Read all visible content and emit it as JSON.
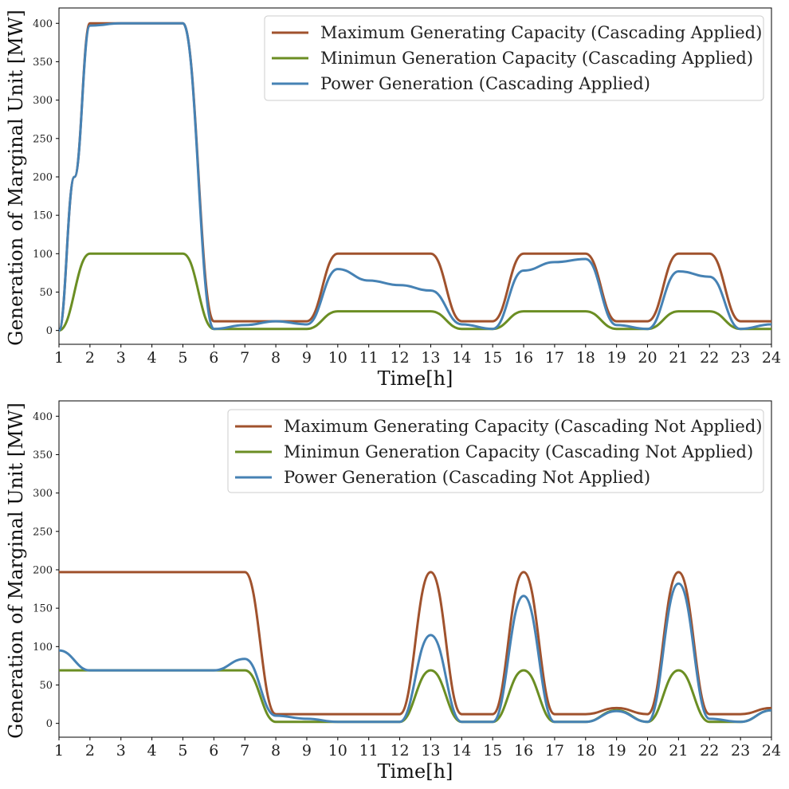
{
  "colors": {
    "max": "#a0522d",
    "min": "#6b8e23",
    "gen": "#4682b4"
  },
  "chart_data": [
    {
      "type": "line",
      "xlabel": "Time[h]",
      "ylabel": "Generation of Marginal Unit [MW]",
      "xlim": [
        1,
        24
      ],
      "ylim": [
        -18,
        420
      ],
      "xticks": [
        1,
        2,
        3,
        4,
        5,
        6,
        7,
        8,
        9,
        10,
        11,
        12,
        13,
        14,
        15,
        16,
        17,
        18,
        19,
        20,
        21,
        22,
        23,
        24
      ],
      "yticks": [
        0,
        50,
        100,
        150,
        200,
        250,
        300,
        350,
        400
      ],
      "legend_position": "top-right",
      "series": [
        {
          "name": "Maximum Generating Capacity (Cascading Applied)",
          "color_key": "max",
          "x": [
            1,
            1.5,
            2,
            5,
            6,
            9,
            10,
            13,
            14,
            15,
            16,
            18,
            19,
            20,
            21,
            22,
            23,
            24
          ],
          "values": [
            0,
            200,
            400,
            400,
            12,
            12,
            100,
            100,
            12,
            12,
            100,
            100,
            12,
            12,
            100,
            100,
            12,
            12
          ]
        },
        {
          "name": "Minimun Generation Capacity (Cascading Applied)",
          "color_key": "min",
          "x": [
            1,
            2,
            5,
            6,
            9,
            10,
            13,
            14,
            15,
            16,
            18,
            19,
            20,
            21,
            22,
            23,
            24
          ],
          "values": [
            0,
            100,
            100,
            2,
            2,
            25,
            25,
            2,
            2,
            25,
            25,
            2,
            2,
            25,
            25,
            2,
            2
          ]
        },
        {
          "name": "Power Generation (Cascading Applied)",
          "color_key": "gen",
          "x": [
            1,
            1.5,
            2,
            3,
            5,
            6,
            7,
            8,
            9,
            10,
            11,
            12,
            13,
            14,
            15,
            16,
            17,
            18,
            19,
            20,
            21,
            22,
            23,
            24
          ],
          "values": [
            0,
            200,
            397,
            400,
            400,
            2,
            7,
            12,
            8,
            80,
            65,
            59,
            52,
            8,
            2,
            78,
            89,
            93,
            7,
            2,
            77,
            70,
            2,
            8
          ]
        }
      ]
    },
    {
      "type": "line",
      "xlabel": "Time[h]",
      "ylabel": "Generation of Marginal Unit [MW]",
      "xlim": [
        1,
        24
      ],
      "ylim": [
        -18,
        420
      ],
      "xticks": [
        1,
        2,
        3,
        4,
        5,
        6,
        7,
        8,
        9,
        10,
        11,
        12,
        13,
        14,
        15,
        16,
        17,
        18,
        19,
        20,
        21,
        22,
        23,
        24
      ],
      "yticks": [
        0,
        50,
        100,
        150,
        200,
        250,
        300,
        350,
        400
      ],
      "legend_position": "top-right",
      "series": [
        {
          "name": "Maximum Generating Capacity (Cascading Not Applied)",
          "color_key": "max",
          "x": [
            1,
            7,
            8,
            12,
            13,
            14,
            15,
            16,
            17,
            18,
            19,
            20,
            21,
            22,
            23,
            24
          ],
          "values": [
            197,
            197,
            12,
            12,
            197,
            12,
            12,
            197,
            12,
            12,
            20,
            12,
            197,
            12,
            12,
            20
          ]
        },
        {
          "name": "Minimun Generation Capacity (Cascading Not Applied)",
          "color_key": "min",
          "x": [
            1,
            7,
            8,
            12,
            13,
            14,
            15,
            16,
            17,
            18,
            19,
            20,
            21,
            22,
            23,
            24
          ],
          "values": [
            69,
            69,
            2,
            2,
            69,
            2,
            2,
            69,
            2,
            2,
            17,
            2,
            69,
            2,
            2,
            17
          ]
        },
        {
          "name": "Power Generation (Cascading Not Applied)",
          "color_key": "gen",
          "x": [
            1,
            2,
            6,
            7,
            8,
            9,
            10,
            12,
            13,
            14,
            15,
            16,
            17,
            18,
            19,
            20,
            21,
            22,
            23,
            24
          ],
          "values": [
            95,
            69,
            69,
            84,
            10,
            6,
            2,
            2,
            115,
            2,
            2,
            166,
            2,
            2,
            16,
            2,
            182,
            6,
            2,
            17
          ]
        }
      ]
    }
  ]
}
